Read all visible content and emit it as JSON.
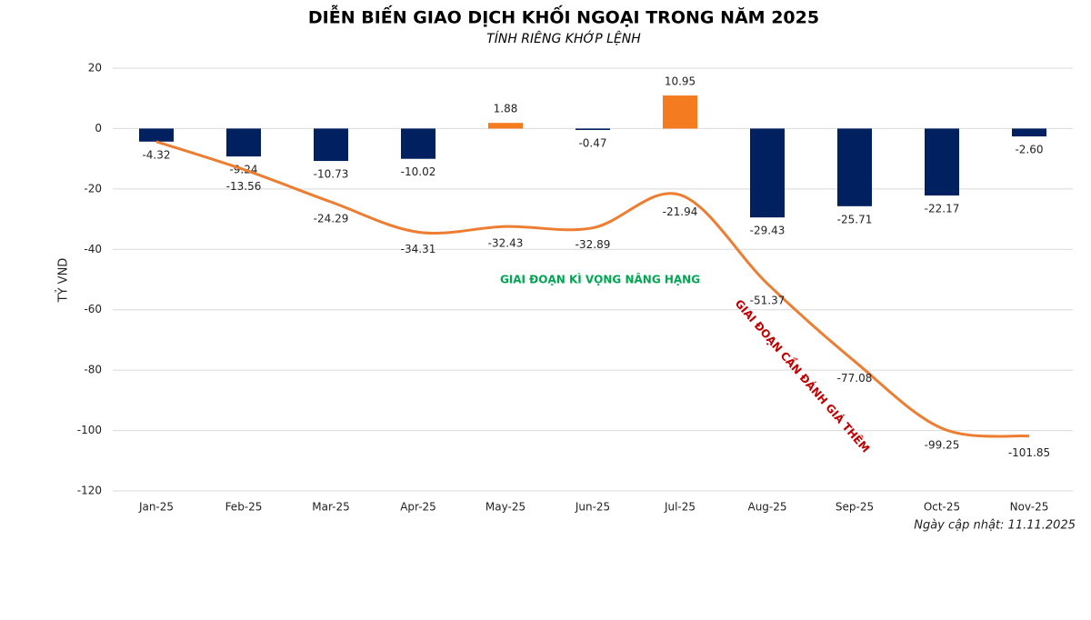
{
  "chart_data": {
    "type": "bar_line",
    "title": "DIỄN BIẾN GIAO DỊCH KHỐI NGOẠI TRONG NĂM 2025",
    "subtitle": "TÍNH RIÊNG KHỚP LỆNH",
    "y_label": "TỶ VND",
    "footnote": "Ngày cập nhật: 11.11.2025",
    "categories": [
      "Jan-25",
      "Feb-25",
      "Mar-25",
      "Apr-25",
      "May-25",
      "Jun-25",
      "Jul-25",
      "Aug-25",
      "Sep-25",
      "Oct-25",
      "Nov-25"
    ],
    "series": [
      {
        "type": "bar",
        "values": [
          -4.32,
          -9.24,
          -10.73,
          -10.02,
          1.88,
          -0.47,
          10.95,
          -29.43,
          -25.71,
          -22.17,
          -2.6
        ],
        "value_labels": [
          "-4.32",
          "-9.24",
          "-10.73",
          "-10.02",
          "1.88",
          "-0.47",
          "10.95",
          "-29.43",
          "-25.71",
          "-22.17",
          "-2.60"
        ],
        "colors": [
          "#002060",
          "#002060",
          "#002060",
          "#002060",
          "#f47b20",
          "#002060",
          "#f47b20",
          "#002060",
          "#002060",
          "#002060",
          "#002060"
        ]
      },
      {
        "type": "line",
        "color": "#ed7d31",
        "values": [
          -4.32,
          -13.56,
          -24.29,
          -34.31,
          -32.43,
          -32.89,
          -21.94,
          -51.37,
          -77.08,
          -99.25,
          -101.85
        ],
        "value_labels": [
          null,
          "-13.56",
          "-24.29",
          "-34.31",
          "-32.43",
          "-32.89",
          "-21.94",
          "-51.37",
          "-77.08",
          "-99.25",
          "-101.85"
        ]
      }
    ],
    "ylim": [
      -120,
      20
    ],
    "yticks": [
      -120,
      -100,
      -80,
      -60,
      -40,
      -20,
      0,
      20
    ],
    "grid": true,
    "annotations": [
      {
        "text": "GIAI ĐOẠN KÌ VỌNG NÂNG HẠNG",
        "color": "#00a651"
      },
      {
        "text": "GIAI ĐOẠN CẦN ĐÁNH GIÁ THÊM",
        "color": "#c00000"
      }
    ]
  }
}
